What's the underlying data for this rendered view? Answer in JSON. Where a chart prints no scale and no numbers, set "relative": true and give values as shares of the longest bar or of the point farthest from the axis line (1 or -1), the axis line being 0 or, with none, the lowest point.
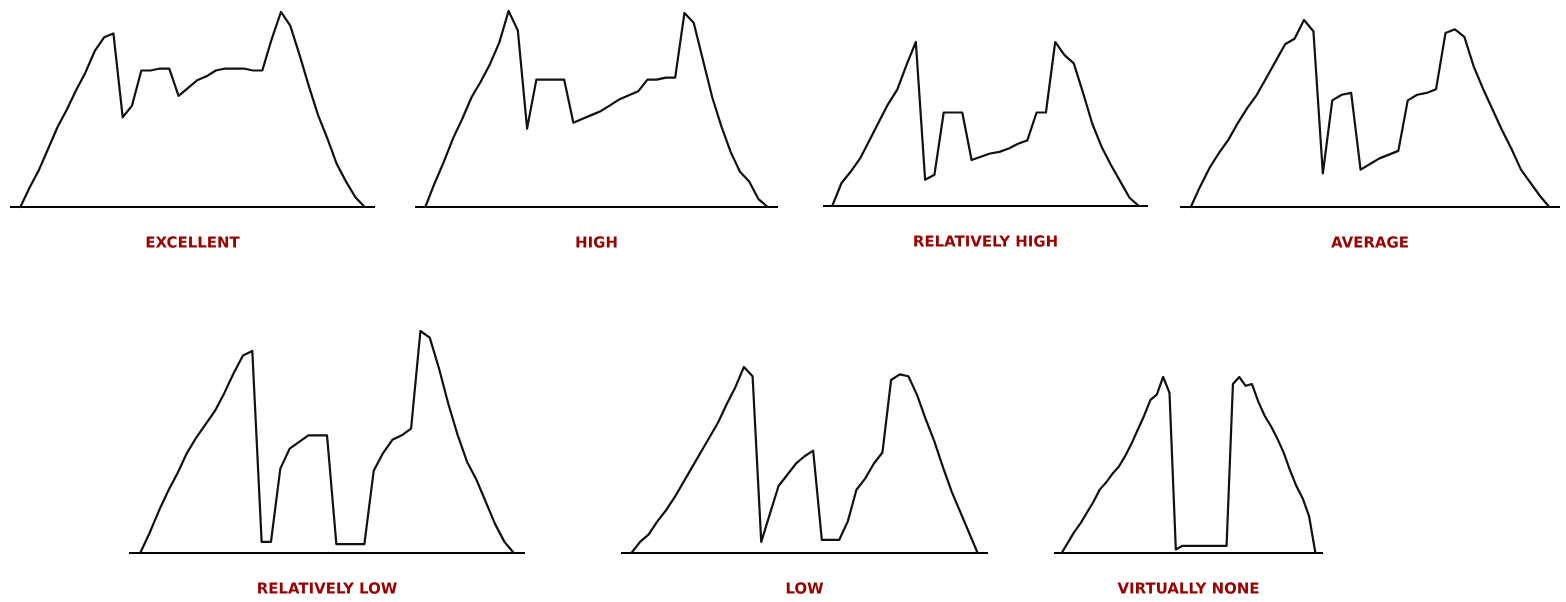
{
  "chart_data": [
    {
      "type": "line",
      "relative": true,
      "title": "EXCELLENT",
      "color": "#111111",
      "categories": [
        null,
        null,
        null,
        null,
        null,
        null,
        null,
        null,
        null,
        null,
        null,
        null,
        null,
        null,
        null,
        null,
        null,
        null,
        null,
        null,
        null,
        null,
        null,
        null,
        null,
        null,
        null,
        null,
        null,
        null,
        null,
        null,
        null,
        null,
        null,
        null,
        null,
        null
      ],
      "values": [
        0,
        0.1,
        0.19,
        0.3,
        0.41,
        0.5,
        0.6,
        0.69,
        0.8,
        0.87,
        0.89,
        0.46,
        0.52,
        0.7,
        0.7,
        0.71,
        0.71,
        0.57,
        0.61,
        0.65,
        0.67,
        0.7,
        0.71,
        0.71,
        0.71,
        0.7,
        0.7,
        0.86,
        1,
        0.93,
        0.78,
        0.62,
        0.47,
        0.35,
        0.22,
        0.13,
        0.05,
        0
      ]
    },
    {
      "type": "line",
      "relative": true,
      "title": "HIGH",
      "color": "#111111",
      "categories": [
        null,
        null,
        null,
        null,
        null,
        null,
        null,
        null,
        null,
        null,
        null,
        null,
        null,
        null,
        null,
        null,
        null,
        null,
        null,
        null,
        null,
        null,
        null,
        null,
        null,
        null,
        null,
        null,
        null,
        null,
        null,
        null,
        null,
        null,
        null,
        null,
        null,
        null
      ],
      "values": [
        0,
        0.12,
        0.23,
        0.35,
        0.45,
        0.56,
        0.64,
        0.73,
        0.84,
        1,
        0.9,
        0.4,
        0.65,
        0.65,
        0.65,
        0.65,
        0.43,
        0.45,
        0.47,
        0.49,
        0.52,
        0.55,
        0.57,
        0.59,
        0.65,
        0.65,
        0.66,
        0.66,
        0.99,
        0.94,
        0.75,
        0.56,
        0.41,
        0.28,
        0.18,
        0.13,
        0.04,
        0
      ]
    },
    {
      "type": "line",
      "relative": true,
      "title": "RELATIVELY HIGH",
      "color": "#111111",
      "categories": [
        null,
        null,
        null,
        null,
        null,
        null,
        null,
        null,
        null,
        null,
        null,
        null,
        null,
        null,
        null,
        null,
        null,
        null,
        null,
        null,
        null,
        null,
        null,
        null,
        null,
        null,
        null,
        null,
        null,
        null,
        null,
        null,
        null,
        null
      ],
      "values": [
        0,
        0.14,
        0.21,
        0.29,
        0.4,
        0.51,
        0.62,
        0.71,
        0.86,
        1,
        0.16,
        0.19,
        0.57,
        0.57,
        0.57,
        0.28,
        0.3,
        0.32,
        0.33,
        0.35,
        0.38,
        0.4,
        0.57,
        0.57,
        1,
        0.92,
        0.87,
        0.69,
        0.5,
        0.36,
        0.25,
        0.15,
        0.05,
        0
      ]
    },
    {
      "type": "line",
      "relative": true,
      "title": "AVERAGE",
      "color": "#111111",
      "categories": [
        null,
        null,
        null,
        null,
        null,
        null,
        null,
        null,
        null,
        null,
        null,
        null,
        null,
        null,
        null,
        null,
        null,
        null,
        null,
        null,
        null,
        null,
        null,
        null,
        null,
        null,
        null,
        null,
        null,
        null,
        null,
        null,
        null,
        null,
        null,
        null,
        null,
        null,
        null
      ],
      "values": [
        0,
        0.11,
        0.21,
        0.29,
        0.36,
        0.45,
        0.53,
        0.6,
        0.69,
        0.78,
        0.87,
        0.9,
        1,
        0.94,
        0.18,
        0.57,
        0.6,
        0.61,
        0.2,
        0.23,
        0.26,
        0.28,
        0.3,
        0.57,
        0.6,
        0.61,
        0.63,
        0.93,
        0.95,
        0.91,
        0.75,
        0.63,
        0.52,
        0.41,
        0.31,
        0.2,
        0.13,
        0.06,
        0
      ]
    },
    {
      "type": "line",
      "relative": true,
      "title": "RELATIVELY LOW",
      "color": "#111111",
      "categories": [
        null,
        null,
        null,
        null,
        null,
        null,
        null,
        null,
        null,
        null,
        null,
        null,
        null,
        null,
        null,
        null,
        null,
        null,
        null,
        null,
        null,
        null,
        null,
        null,
        null,
        null,
        null,
        null,
        null,
        null,
        null,
        null,
        null,
        null,
        null,
        null,
        null,
        null,
        null,
        null,
        null
      ],
      "values": [
        0,
        0.09,
        0.19,
        0.28,
        0.36,
        0.45,
        0.52,
        0.58,
        0.64,
        0.72,
        0.81,
        0.89,
        0.91,
        0.05,
        0.05,
        0.38,
        0.47,
        0.5,
        0.53,
        0.53,
        0.53,
        0.04,
        0.04,
        0.04,
        0.04,
        0.37,
        0.45,
        0.51,
        0.53,
        0.56,
        1,
        0.97,
        0.83,
        0.67,
        0.53,
        0.41,
        0.33,
        0.23,
        0.13,
        0.05,
        0
      ]
    },
    {
      "type": "line",
      "relative": true,
      "title": "LOW",
      "color": "#111111",
      "categories": [
        null,
        null,
        null,
        null,
        null,
        null,
        null,
        null,
        null,
        null,
        null,
        null,
        null,
        null,
        null,
        null,
        null,
        null,
        null,
        null,
        null,
        null,
        null,
        null,
        null,
        null,
        null,
        null,
        null,
        null,
        null,
        null,
        null,
        null,
        null,
        null,
        null,
        null,
        null,
        null,
        null
      ],
      "values": [
        0,
        0.06,
        0.1,
        0.17,
        0.23,
        0.3,
        0.38,
        0.46,
        0.54,
        0.62,
        0.7,
        0.8,
        0.89,
        1,
        0.95,
        0.06,
        0.21,
        0.36,
        0.42,
        0.48,
        0.52,
        0.55,
        0.07,
        0.07,
        0.07,
        0.17,
        0.34,
        0.4,
        0.48,
        0.54,
        0.93,
        0.96,
        0.95,
        0.85,
        0.72,
        0.6,
        0.46,
        0.33,
        0.22,
        0.11,
        0
      ]
    },
    {
      "type": "line",
      "relative": true,
      "title": "VIRTUALLY NONE",
      "color": "#111111",
      "categories": [
        null,
        null,
        null,
        null,
        null,
        null,
        null,
        null,
        null,
        null,
        null,
        null,
        null,
        null,
        null,
        null,
        null,
        null,
        null,
        null,
        null,
        null,
        null,
        null,
        null,
        null,
        null,
        null,
        null,
        null,
        null,
        null,
        null,
        null,
        null,
        null,
        null,
        null,
        null,
        null,
        null
      ],
      "values": [
        0,
        0.06,
        0.12,
        0.17,
        0.23,
        0.29,
        0.36,
        0.4,
        0.45,
        0.49,
        0.55,
        0.62,
        0.7,
        0.78,
        0.87,
        0.9,
        1,
        0.91,
        0.02,
        0.04,
        0.04,
        0.04,
        0.04,
        0.04,
        0.04,
        0.04,
        0.04,
        0.96,
        1,
        0.95,
        0.96,
        0.86,
        0.78,
        0.72,
        0.65,
        0.57,
        0.47,
        0.38,
        0.31,
        0.21,
        0
      ]
    }
  ]
}
